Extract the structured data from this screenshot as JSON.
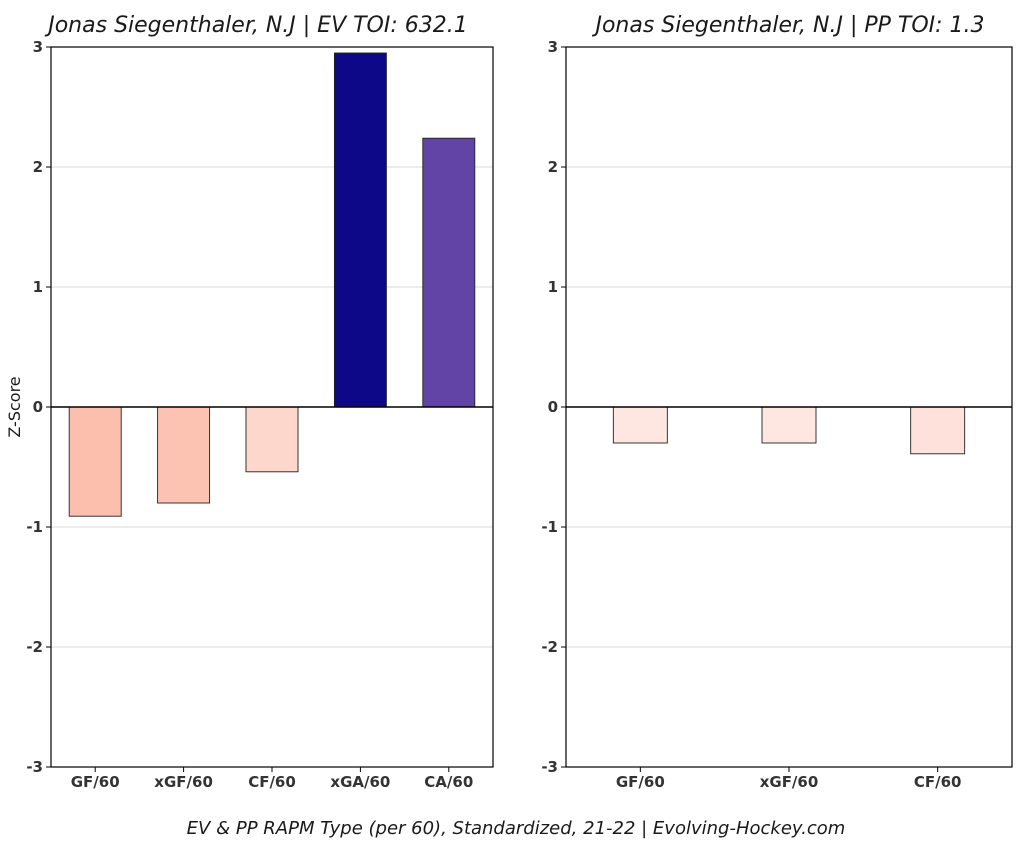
{
  "figure": {
    "footer": "EV & PP RAPM Type (per 60), Standardized, 21-22    |    Evolving-Hockey.com"
  },
  "chart_data": [
    {
      "type": "bar",
      "title": "Jonas Siegenthaler, N.J  |  EV TOI: 632.1",
      "ylabel": "Z-Score",
      "xlabel": "",
      "ylim": [
        -3,
        3
      ],
      "yticks": [
        3,
        2,
        1,
        0,
        -1,
        -2,
        -3
      ],
      "grid": true,
      "categories": [
        "GF/60",
        "xGF/60",
        "CF/60",
        "xGA/60",
        "CA/60"
      ],
      "values": [
        -0.91,
        -0.8,
        -0.54,
        2.95,
        2.24
      ],
      "colors": [
        "#fcbfad",
        "#fcc3b3",
        "#fdd7cc",
        "#0d0887",
        "#6243a6"
      ]
    },
    {
      "type": "bar",
      "title": "Jonas Siegenthaler, N.J  |  PP TOI: 1.3",
      "ylabel": "",
      "xlabel": "",
      "ylim": [
        -3,
        3
      ],
      "yticks": [
        3,
        2,
        1,
        0,
        -1,
        -2,
        -3
      ],
      "grid": true,
      "categories": [
        "GF/60",
        "xGF/60",
        "CF/60"
      ],
      "values": [
        -0.3,
        -0.3,
        -0.39
      ],
      "colors": [
        "#fee7e1",
        "#fee7e1",
        "#fee1da"
      ]
    }
  ]
}
